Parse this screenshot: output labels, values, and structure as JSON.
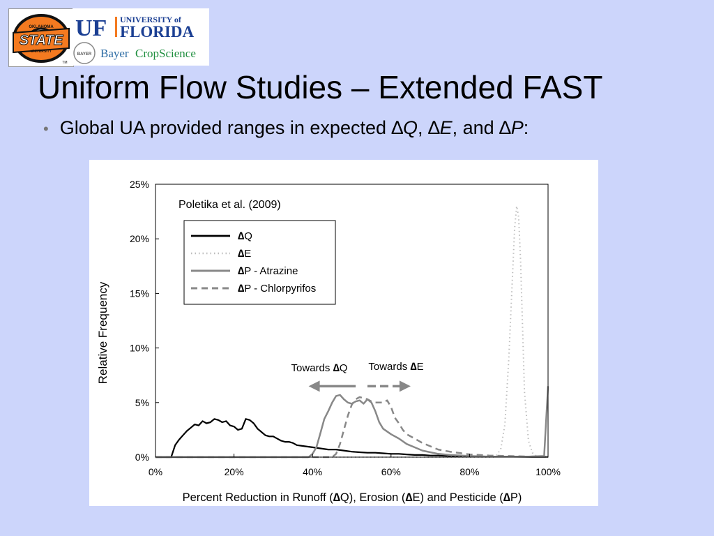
{
  "logos": {
    "osu": {
      "top_text": "OKLAHOMA",
      "main_text": "STATE",
      "bottom_text": "UNIVERSITY",
      "mark": "TM"
    },
    "uf": {
      "initials": "UF",
      "line1": "UNIVERSITY of",
      "line2": "FLORIDA"
    },
    "bayer": {
      "seal": "BAYER",
      "word1": "Bayer",
      "word2": "CropScience"
    }
  },
  "slide": {
    "title": "Uniform Flow Studies – Extended FAST",
    "bullet": {
      "prefix": "Global UA provided ranges in expected ",
      "delta": "∆",
      "q": "Q",
      "sep1": ", ",
      "e": "E",
      "sep2": ", and ",
      "p": "P",
      "end": ":"
    }
  },
  "colors": {
    "background": "#ccd5fb",
    "dq": "#000000",
    "de": "#bdbdbd",
    "dp_atrazine": "#888888",
    "dp_chlorpyrifos": "#888888",
    "arrow": "#888888"
  },
  "chart_data": {
    "type": "line",
    "annotation": "Poletika et al. (2009)",
    "xlabel": {
      "p1": "Percent Reduction in Runoff (",
      "d1": "∆",
      "p2": "Q), Erosion (",
      "d2": "∆",
      "p3": "E) and Pesticide (",
      "d3": "∆",
      "p4": "P)"
    },
    "ylabel": "Relative Frequency",
    "xlim": [
      0,
      100
    ],
    "ylim": [
      0,
      25
    ],
    "x_ticks": [
      0,
      20,
      40,
      60,
      80,
      100
    ],
    "x_tick_labels": [
      "0%",
      "20%",
      "40%",
      "60%",
      "80%",
      "100%"
    ],
    "y_ticks": [
      0,
      5,
      10,
      15,
      20,
      25
    ],
    "y_tick_labels": [
      "0%",
      "5%",
      "10%",
      "15%",
      "20%",
      "25%"
    ],
    "grid": false,
    "legend_position": "upper-left",
    "series": [
      {
        "name": "Q",
        "legend_delta": "∆",
        "legend_text": "Q",
        "style": "solid",
        "color": "#000000",
        "width": 2.2,
        "x": [
          0,
          4,
          5,
          6,
          7,
          8,
          9,
          10,
          11,
          12,
          13,
          14,
          15,
          16,
          17,
          18,
          19,
          20,
          21,
          22,
          23,
          24,
          25,
          26,
          27,
          28,
          29,
          30,
          31,
          32,
          33,
          34,
          35,
          36,
          38,
          40,
          42,
          44,
          46,
          48,
          50,
          52,
          54,
          56,
          58,
          60,
          62,
          64,
          66,
          68,
          70,
          72,
          74,
          76,
          78,
          80,
          82,
          85,
          88,
          91,
          94,
          96,
          98,
          100
        ],
        "y": [
          0,
          0,
          1.1,
          1.6,
          2.0,
          2.4,
          2.7,
          3.0,
          2.9,
          3.3,
          3.1,
          3.2,
          3.5,
          3.4,
          3.2,
          3.3,
          2.9,
          2.8,
          2.5,
          2.6,
          3.5,
          3.4,
          3.1,
          2.6,
          2.3,
          2.0,
          1.9,
          1.9,
          1.7,
          1.5,
          1.4,
          1.4,
          1.3,
          1.1,
          1.0,
          0.9,
          0.8,
          0.7,
          0.7,
          0.6,
          0.5,
          0.45,
          0.4,
          0.4,
          0.35,
          0.3,
          0.3,
          0.25,
          0.2,
          0.2,
          0.15,
          0.15,
          0.12,
          0.1,
          0.1,
          0.08,
          0.07,
          0.05,
          0.05,
          0.04,
          0.03,
          0.02,
          0.02,
          0.02
        ]
      },
      {
        "name": "E",
        "legend_delta": "∆",
        "legend_text": "E",
        "style": "dotted",
        "color": "#bdbdbd",
        "width": 2,
        "x": [
          0,
          86,
          87,
          88,
          89,
          90,
          91,
          91.5,
          92,
          92.5,
          93,
          93.5,
          94,
          95,
          96,
          97,
          100
        ],
        "y": [
          0,
          0,
          0.2,
          0.8,
          3.0,
          9.0,
          17.0,
          21.0,
          23.0,
          22.0,
          18.0,
          12.0,
          6.0,
          1.5,
          0.4,
          0.1,
          0
        ]
      },
      {
        "name": "P - Atrazine",
        "legend_delta": "∆",
        "legend_text": "P - Atrazine",
        "style": "solid",
        "color": "#888888",
        "width": 2.5,
        "x": [
          0,
          39,
          40,
          41,
          42,
          43,
          44,
          45,
          46,
          47,
          48,
          49,
          50,
          51,
          52,
          53,
          54,
          55,
          56,
          57,
          58,
          60,
          62,
          64,
          66,
          68,
          70,
          72,
          75,
          80,
          85,
          90,
          95,
          99,
          100
        ],
        "y": [
          0,
          0,
          0.3,
          0.9,
          2.2,
          3.5,
          4.2,
          5.0,
          5.6,
          5.7,
          5.3,
          5.0,
          4.9,
          5.1,
          5.2,
          4.9,
          5.3,
          5.0,
          4.2,
          3.2,
          2.6,
          2.1,
          1.7,
          1.2,
          0.9,
          0.6,
          0.45,
          0.3,
          0.2,
          0.1,
          0.05,
          0.05,
          0.05,
          0.1,
          6.5
        ]
      },
      {
        "name": "P - Chlorpyrifos",
        "legend_delta": "∆",
        "legend_text": "P - Chlorpyrifos",
        "style": "dashed",
        "color": "#888888",
        "width": 2.5,
        "x": [
          0,
          45,
          46,
          47,
          48,
          49,
          50,
          51,
          52,
          53,
          54,
          55,
          56,
          57,
          58,
          59,
          60,
          61,
          62,
          63,
          64,
          66,
          68,
          70,
          72,
          75,
          78,
          80,
          85,
          90,
          95,
          100
        ],
        "y": [
          0,
          0,
          0.3,
          1.2,
          2.5,
          3.8,
          4.8,
          5.3,
          5.5,
          5.4,
          5.3,
          5.1,
          5.0,
          5.0,
          5.0,
          5.2,
          4.6,
          3.6,
          3.1,
          2.5,
          2.1,
          1.7,
          1.3,
          1.0,
          0.7,
          0.5,
          0.35,
          0.25,
          0.15,
          0.1,
          0.05,
          0.05
        ]
      }
    ],
    "arrows": [
      {
        "label_prefix": "Towards ",
        "label_delta": "∆",
        "label_var": "Q",
        "direction": "left",
        "style": "solid",
        "x_from": 51,
        "x_to": 39,
        "y": 6.5
      },
      {
        "label_prefix": "Towards ",
        "label_delta": "∆",
        "label_var": "E",
        "direction": "right",
        "style": "dashed",
        "x_from": 54,
        "x_to": 65,
        "y": 6.5
      }
    ]
  }
}
